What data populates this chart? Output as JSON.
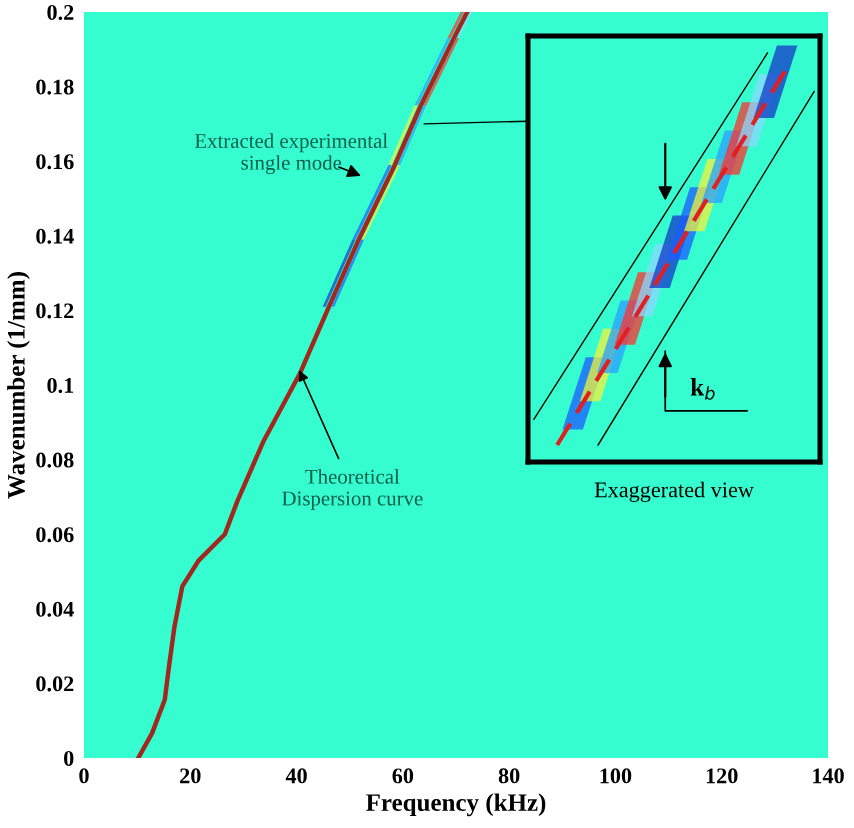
{
  "chart_data": {
    "type": "line",
    "xlabel": "Frequency (kHz)",
    "ylabel": "Wavenumber (1/mm)",
    "x": [
      10.2,
      12.8,
      15.2,
      16.0,
      17.0,
      18.5,
      21.6,
      26.5,
      28.9,
      33.8,
      40.6,
      46.1,
      51.7,
      58.5,
      63.4,
      69.6,
      72.1
    ],
    "series": [
      {
        "color": "#a0281e",
        "values": [
          0,
          0.0066,
          0.0156,
          0.0246,
          0.035,
          0.046,
          0.053,
          0.06,
          0.069,
          0.085,
          0.103,
          0.121,
          0.139,
          0.159,
          0.175,
          0.193,
          0.2
        ]
      }
    ],
    "xlim": [
      0,
      140
    ],
    "xticks": [
      0,
      20,
      40,
      60,
      80,
      100,
      120,
      140
    ],
    "ylim": [
      0,
      0.2
    ],
    "yticks": [
      0,
      0.02,
      0.04,
      0.06,
      0.08,
      {
        "value": 0.1,
        "label": "0.1"
      },
      0.12,
      0.14,
      0.16,
      0.18,
      0.2
    ],
    "grid": false,
    "legend": false,
    "annotations": [
      "Extracted experimental\nsingle mode",
      {
        "text": "Theoretical\nDispersion curve",
        "x": 40.5,
        "y": 0.104
      },
      "k$_{b}$",
      "Exaggerated view"
    ]
  }
}
